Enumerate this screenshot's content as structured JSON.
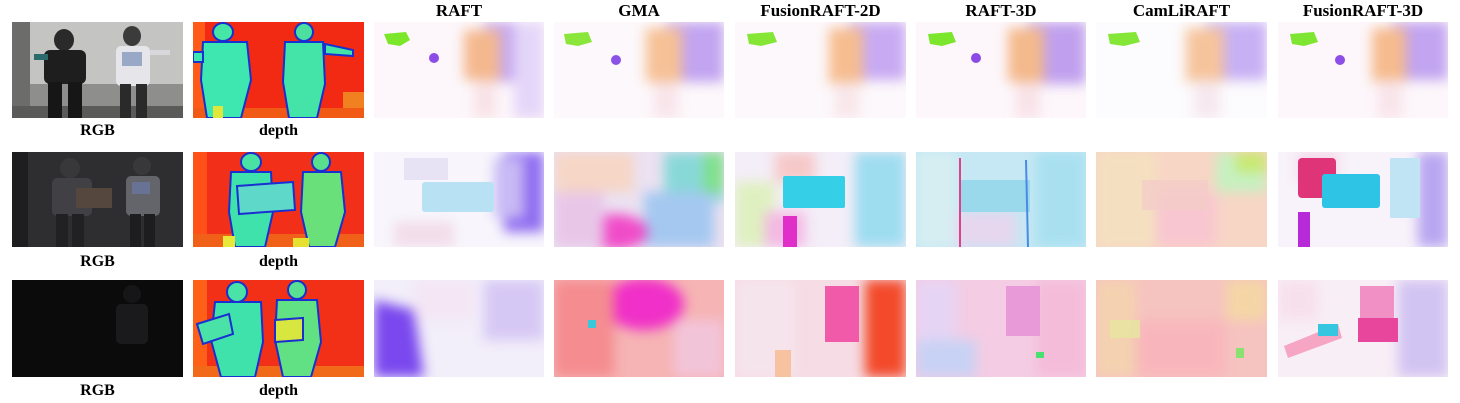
{
  "columns": [
    "RAFT",
    "GMA",
    "FusionRAFT-2D",
    "RAFT-3D",
    "CamLiRAFT",
    "FusionRAFT-3D"
  ],
  "row_labels": {
    "rgb": "RGB",
    "depth": "depth"
  }
}
